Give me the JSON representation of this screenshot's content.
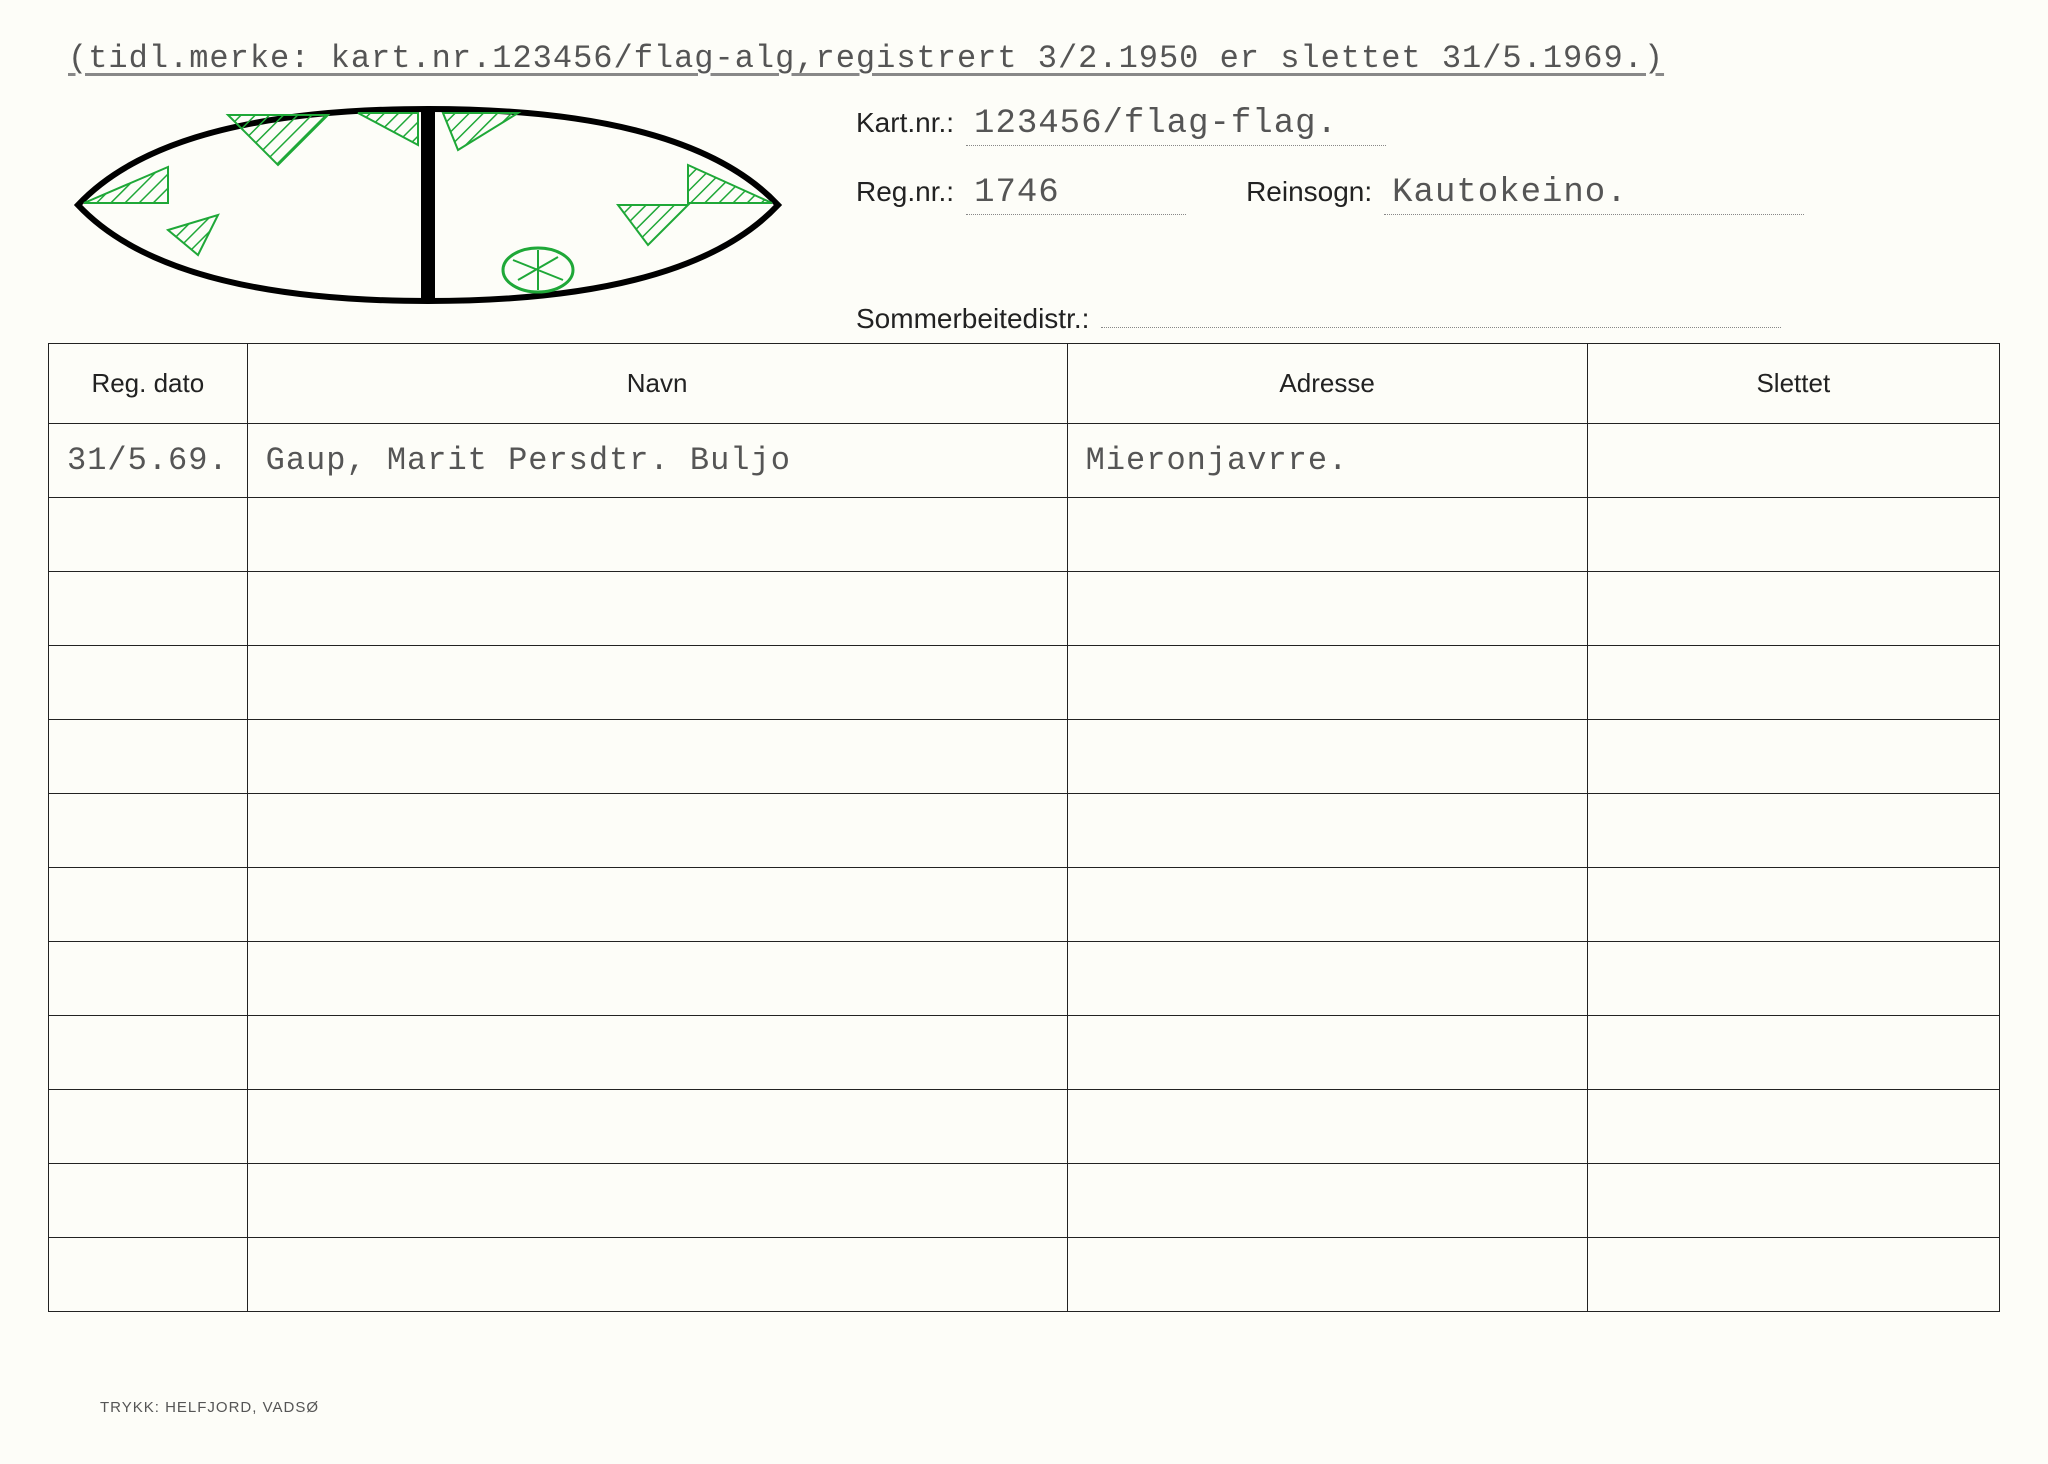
{
  "top_note": "(tidl.merke: kart.nr.123456/flag-alg,registrert 3/2.1950 er slettet 31/5.1969.)",
  "fields": {
    "kartnr_label": "Kart.nr.:",
    "kartnr_value": "123456/flag-flag.",
    "regnr_label": "Reg.nr.:",
    "regnr_value": "1746",
    "reinsogn_label": "Reinsogn:",
    "reinsogn_value": "Kautokeino.",
    "sommer_label": "Sommerbeitedistr.:",
    "sommer_value": ""
  },
  "table": {
    "headers": {
      "dato": "Reg. dato",
      "navn": "Navn",
      "adresse": "Adresse",
      "slettet": "Slettet"
    },
    "rows": [
      {
        "dato": "31/5.69.",
        "navn": "Gaup, Marit Persdtr. Buljo",
        "adresse": "Mieronjavrre.",
        "slettet": ""
      },
      {
        "dato": "",
        "navn": "",
        "adresse": "",
        "slettet": ""
      },
      {
        "dato": "",
        "navn": "",
        "adresse": "",
        "slettet": ""
      },
      {
        "dato": "",
        "navn": "",
        "adresse": "",
        "slettet": ""
      },
      {
        "dato": "",
        "navn": "",
        "adresse": "",
        "slettet": ""
      },
      {
        "dato": "",
        "navn": "",
        "adresse": "",
        "slettet": ""
      },
      {
        "dato": "",
        "navn": "",
        "adresse": "",
        "slettet": ""
      },
      {
        "dato": "",
        "navn": "",
        "adresse": "",
        "slettet": ""
      },
      {
        "dato": "",
        "navn": "",
        "adresse": "",
        "slettet": ""
      },
      {
        "dato": "",
        "navn": "",
        "adresse": "",
        "slettet": ""
      },
      {
        "dato": "",
        "navn": "",
        "adresse": "",
        "slettet": ""
      },
      {
        "dato": "",
        "navn": "",
        "adresse": "",
        "slettet": ""
      }
    ]
  },
  "footer": "TRYKK: HELFJORD, VADSØ",
  "earmark": {
    "outline_color": "#000000",
    "outline_width": 6,
    "hatch_color": "#1fa838",
    "background": "#fdfdf8"
  }
}
